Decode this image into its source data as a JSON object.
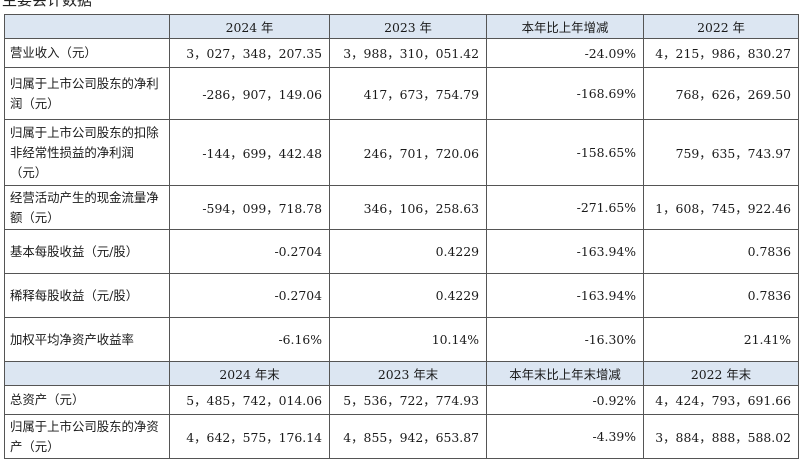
{
  "page_heading": "主要会计数据",
  "header_1": [
    "",
    "2024 年",
    "2023 年",
    "本年比上年增减",
    "2022 年"
  ],
  "rows_1": [
    {
      "label": "营业收入（元）",
      "v2024": "3，027，348，207.35",
      "v2023": "3，988，310，051.42",
      "change": "-24.09%",
      "v2022": "4，215，986，830.27"
    },
    {
      "label": "归属于上市公司股东的净利润（元）",
      "v2024": "-286，907，149.06",
      "v2023": "417，673，754.79",
      "change": "-168.69%",
      "v2022": "768，626，269.50"
    },
    {
      "label": "归属于上市公司股东的扣除非经常性损益的净利润（元）",
      "v2024": "-144，699，442.48",
      "v2023": "246，701，720.06",
      "change": "-158.65%",
      "v2022": "759，635，743.97"
    },
    {
      "label": "经营活动产生的现金流量净额（元）",
      "v2024": "-594，099，718.78",
      "v2023": "346，106，258.63",
      "change": "-271.65%",
      "v2022": "1，608，745，922.46"
    },
    {
      "label": "基本每股收益（元/股）",
      "v2024": "-0.2704",
      "v2023": "0.4229",
      "change": "-163.94%",
      "v2022": "0.7836"
    },
    {
      "label": "稀释每股收益（元/股）",
      "v2024": "-0.2704",
      "v2023": "0.4229",
      "change": "-163.94%",
      "v2022": "0.7836"
    },
    {
      "label": "加权平均净资产收益率",
      "v2024": "-6.16%",
      "v2023": "10.14%",
      "change": "-16.30%",
      "v2022": "21.41%"
    }
  ],
  "header_2": [
    "",
    "2024 年末",
    "2023 年末",
    "本年末比上年末增减",
    "2022 年末"
  ],
  "rows_2": [
    {
      "label": "总资产（元）",
      "v2024": "5，485，742，014.06",
      "v2023": "5，536，722，774.93",
      "change": "-0.92%",
      "v2022": "4，424，793，691.66"
    },
    {
      "label": "归属于上市公司股东的净资产（元）",
      "v2024": "4，642，575，176.14",
      "v2023": "4，855，942，653.87",
      "change": "-4.39%",
      "v2022": "3，884，888，588.02"
    }
  ]
}
